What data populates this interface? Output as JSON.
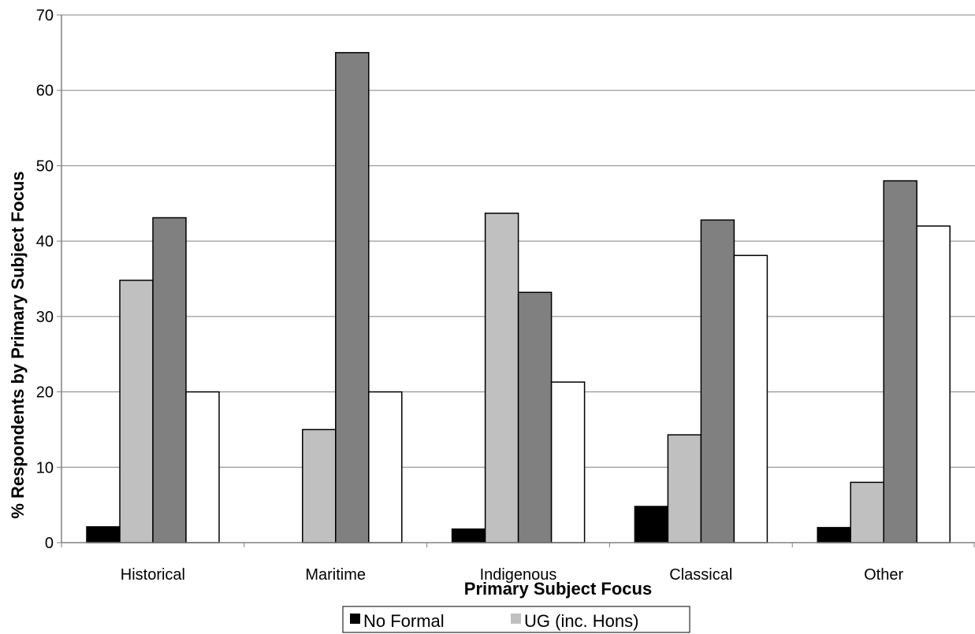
{
  "chart_data": {
    "type": "bar",
    "xlabel": "Primary Subject Focus",
    "ylabel": "% Respondents by Primary Subject Focus",
    "ylim": [
      0,
      70
    ],
    "yticks": [
      0,
      10,
      20,
      30,
      40,
      50,
      60,
      70
    ],
    "grid": true,
    "legend_position": "bottom",
    "categories": [
      "Historical",
      "Maritime",
      "Indigenous",
      "Classical",
      "Other"
    ],
    "series": [
      {
        "name": "No Formal",
        "color": "#000000",
        "values": [
          2.1,
          0,
          1.8,
          4.8,
          2.0
        ]
      },
      {
        "name": "UG (inc. Hons)",
        "color": "#c0c0c0",
        "values": [
          34.8,
          15.0,
          43.7,
          14.3,
          8.0
        ]
      },
      {
        "color": "#808080",
        "values": [
          43.1,
          65.0,
          33.2,
          42.8,
          48.0
        ]
      },
      {
        "color": "#ffffff",
        "values": [
          20.0,
          20.0,
          21.3,
          38.1,
          42.0
        ]
      }
    ],
    "legend": [
      "No Formal",
      "UG (inc. Hons)"
    ]
  }
}
